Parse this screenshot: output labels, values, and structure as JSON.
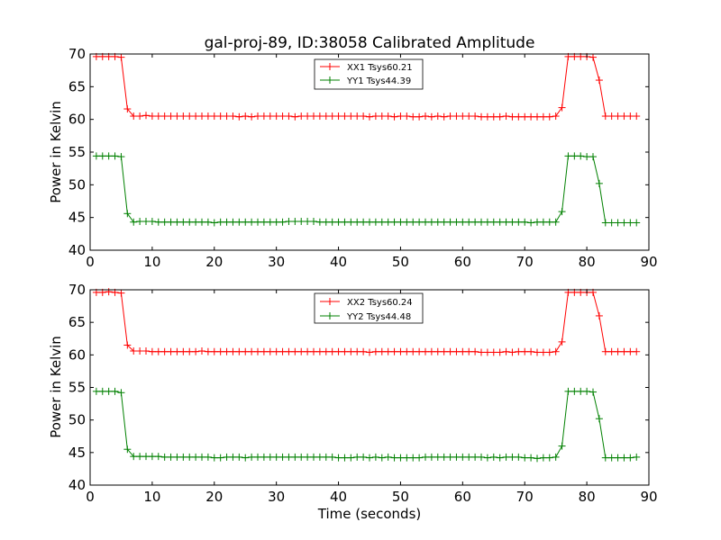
{
  "figure": {
    "title": "gal-proj-89, ID:38058 Calibrated Amplitude",
    "xlabel": "Time (seconds)"
  },
  "colors": {
    "red": "#ff0000",
    "green": "#008000"
  },
  "chart_data": [
    {
      "type": "line",
      "ylabel": "Power in Kelvin",
      "xlim": [
        0,
        90
      ],
      "ylim": [
        40,
        70
      ],
      "xticks": [
        0,
        10,
        20,
        30,
        40,
        50,
        60,
        70,
        80,
        90
      ],
      "yticks": [
        40,
        45,
        50,
        55,
        60,
        65,
        70
      ],
      "grid": false,
      "legend_position": "top-center",
      "marker": "+",
      "x": [
        1,
        2,
        3,
        4,
        5,
        6,
        7,
        8,
        9,
        10,
        11,
        12,
        13,
        14,
        15,
        16,
        17,
        18,
        19,
        20,
        21,
        22,
        23,
        24,
        25,
        26,
        27,
        28,
        29,
        30,
        31,
        32,
        33,
        34,
        35,
        36,
        37,
        38,
        39,
        40,
        41,
        42,
        43,
        44,
        45,
        46,
        47,
        48,
        49,
        50,
        51,
        52,
        53,
        54,
        55,
        56,
        57,
        58,
        59,
        60,
        61,
        62,
        63,
        64,
        65,
        66,
        67,
        68,
        69,
        70,
        71,
        72,
        73,
        74,
        75,
        76,
        77,
        78,
        79,
        80,
        81,
        82,
        83,
        84,
        85,
        86,
        87,
        88
      ],
      "series": [
        {
          "name": "XX1 Tsys60.21",
          "color": "red",
          "values": [
            69.6,
            69.6,
            69.6,
            69.6,
            69.5,
            61.6,
            60.5,
            60.5,
            60.6,
            60.5,
            60.5,
            60.5,
            60.5,
            60.5,
            60.5,
            60.5,
            60.5,
            60.5,
            60.5,
            60.5,
            60.5,
            60.5,
            60.5,
            60.4,
            60.5,
            60.4,
            60.5,
            60.5,
            60.5,
            60.5,
            60.5,
            60.5,
            60.4,
            60.5,
            60.5,
            60.5,
            60.5,
            60.5,
            60.5,
            60.5,
            60.5,
            60.5,
            60.5,
            60.5,
            60.4,
            60.5,
            60.5,
            60.5,
            60.4,
            60.5,
            60.5,
            60.4,
            60.4,
            60.5,
            60.4,
            60.5,
            60.4,
            60.5,
            60.5,
            60.5,
            60.5,
            60.5,
            60.4,
            60.4,
            60.4,
            60.4,
            60.5,
            60.4,
            60.4,
            60.4,
            60.4,
            60.4,
            60.4,
            60.4,
            60.5,
            61.8,
            69.6,
            69.6,
            69.6,
            69.6,
            69.5,
            66.0,
            60.5,
            60.5,
            60.5,
            60.5,
            60.5,
            60.5
          ]
        },
        {
          "name": "YY1 Tsys44.39",
          "color": "green",
          "values": [
            54.4,
            54.4,
            54.4,
            54.4,
            54.3,
            45.6,
            44.3,
            44.4,
            44.4,
            44.4,
            44.3,
            44.3,
            44.3,
            44.3,
            44.3,
            44.3,
            44.3,
            44.3,
            44.3,
            44.2,
            44.3,
            44.3,
            44.3,
            44.3,
            44.3,
            44.3,
            44.3,
            44.3,
            44.3,
            44.3,
            44.3,
            44.4,
            44.4,
            44.4,
            44.4,
            44.4,
            44.3,
            44.3,
            44.3,
            44.3,
            44.3,
            44.3,
            44.3,
            44.3,
            44.3,
            44.3,
            44.3,
            44.3,
            44.3,
            44.3,
            44.3,
            44.3,
            44.3,
            44.3,
            44.3,
            44.3,
            44.3,
            44.3,
            44.3,
            44.3,
            44.3,
            44.3,
            44.3,
            44.3,
            44.3,
            44.3,
            44.3,
            44.3,
            44.3,
            44.3,
            44.2,
            44.3,
            44.3,
            44.3,
            44.3,
            45.9,
            54.4,
            54.4,
            54.4,
            54.3,
            54.3,
            50.2,
            44.2,
            44.2,
            44.2,
            44.2,
            44.2,
            44.2
          ]
        }
      ]
    },
    {
      "type": "line",
      "ylabel": "Power in Kelvin",
      "xlabel": "Time (seconds)",
      "xlim": [
        0,
        90
      ],
      "ylim": [
        40,
        70
      ],
      "xticks": [
        0,
        10,
        20,
        30,
        40,
        50,
        60,
        70,
        80,
        90
      ],
      "yticks": [
        40,
        45,
        50,
        55,
        60,
        65,
        70
      ],
      "grid": false,
      "legend_position": "top-center",
      "marker": "+",
      "x": [
        1,
        2,
        3,
        4,
        5,
        6,
        7,
        8,
        9,
        10,
        11,
        12,
        13,
        14,
        15,
        16,
        17,
        18,
        19,
        20,
        21,
        22,
        23,
        24,
        25,
        26,
        27,
        28,
        29,
        30,
        31,
        32,
        33,
        34,
        35,
        36,
        37,
        38,
        39,
        40,
        41,
        42,
        43,
        44,
        45,
        46,
        47,
        48,
        49,
        50,
        51,
        52,
        53,
        54,
        55,
        56,
        57,
        58,
        59,
        60,
        61,
        62,
        63,
        64,
        65,
        66,
        67,
        68,
        69,
        70,
        71,
        72,
        73,
        74,
        75,
        76,
        77,
        78,
        79,
        80,
        81,
        82,
        83,
        84,
        85,
        86,
        87,
        88
      ],
      "series": [
        {
          "name": "XX2 Tsys60.24",
          "color": "red",
          "values": [
            69.6,
            69.6,
            69.7,
            69.6,
            69.5,
            61.5,
            60.6,
            60.6,
            60.6,
            60.5,
            60.5,
            60.5,
            60.5,
            60.5,
            60.5,
            60.5,
            60.5,
            60.6,
            60.5,
            60.5,
            60.5,
            60.5,
            60.5,
            60.5,
            60.5,
            60.5,
            60.5,
            60.5,
            60.5,
            60.5,
            60.5,
            60.5,
            60.5,
            60.5,
            60.5,
            60.5,
            60.5,
            60.5,
            60.5,
            60.5,
            60.5,
            60.5,
            60.5,
            60.5,
            60.4,
            60.5,
            60.5,
            60.5,
            60.5,
            60.5,
            60.5,
            60.5,
            60.5,
            60.5,
            60.5,
            60.5,
            60.5,
            60.5,
            60.5,
            60.5,
            60.5,
            60.5,
            60.4,
            60.4,
            60.4,
            60.4,
            60.5,
            60.4,
            60.5,
            60.5,
            60.5,
            60.4,
            60.4,
            60.4,
            60.5,
            62.0,
            69.6,
            69.6,
            69.6,
            69.6,
            69.6,
            66.0,
            60.5,
            60.5,
            60.5,
            60.5,
            60.5,
            60.5
          ]
        },
        {
          "name": "YY2 Tsys44.48",
          "color": "green",
          "values": [
            54.4,
            54.4,
            54.4,
            54.4,
            54.2,
            45.5,
            44.4,
            44.4,
            44.4,
            44.4,
            44.4,
            44.3,
            44.3,
            44.3,
            44.3,
            44.3,
            44.3,
            44.3,
            44.3,
            44.2,
            44.2,
            44.3,
            44.3,
            44.3,
            44.2,
            44.3,
            44.3,
            44.3,
            44.3,
            44.3,
            44.3,
            44.3,
            44.3,
            44.3,
            44.3,
            44.3,
            44.3,
            44.3,
            44.3,
            44.2,
            44.2,
            44.2,
            44.3,
            44.3,
            44.2,
            44.3,
            44.2,
            44.3,
            44.2,
            44.2,
            44.2,
            44.2,
            44.2,
            44.3,
            44.3,
            44.3,
            44.3,
            44.3,
            44.3,
            44.3,
            44.3,
            44.3,
            44.3,
            44.2,
            44.3,
            44.2,
            44.3,
            44.3,
            44.3,
            44.2,
            44.2,
            44.1,
            44.2,
            44.2,
            44.3,
            46.0,
            54.4,
            54.4,
            54.4,
            54.4,
            54.3,
            50.2,
            44.2,
            44.2,
            44.2,
            44.2,
            44.2,
            44.3
          ]
        }
      ]
    }
  ]
}
